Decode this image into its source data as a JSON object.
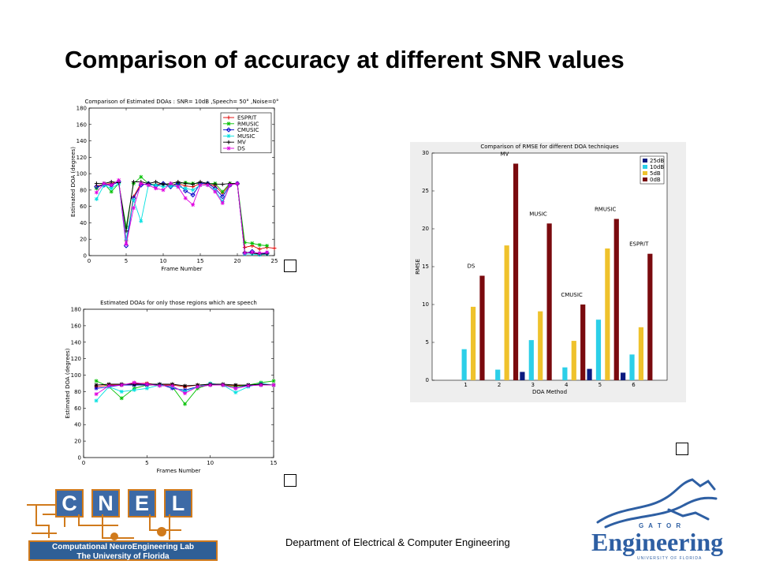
{
  "slide": {
    "title": "Comparison of accuracy at different SNR values",
    "footer": "Department of Electrical & Computer Engineering"
  },
  "logos": {
    "cnel": {
      "letters": [
        "C",
        "N",
        "E",
        "L"
      ],
      "line1": "Computational NeuroEngineering Lab",
      "line2": "The University of Florida"
    },
    "gator": {
      "big": "Engineering",
      "small": "G A T O R",
      "tagline": "UNIVERSITY OF FLORIDA"
    }
  },
  "chart_data": [
    {
      "type": "line",
      "title": "Comparison of Estimated DOAs : SNR= 10dB ,Speech= 50° ,Noise=0°",
      "xlabel": "Frame Number",
      "ylabel": "Estimated DOA (degrees)",
      "xlim": [
        0,
        25
      ],
      "ylim": [
        0,
        180
      ],
      "xticks": [
        0,
        5,
        10,
        15,
        20,
        25
      ],
      "yticks": [
        0,
        20,
        40,
        60,
        80,
        100,
        120,
        140,
        160,
        180
      ],
      "grid": false,
      "legend": "top-right",
      "x": [
        1,
        2,
        3,
        4,
        5,
        6,
        7,
        8,
        9,
        10,
        11,
        12,
        13,
        14,
        15,
        16,
        17,
        18,
        19,
        20,
        21,
        22,
        23,
        24,
        25
      ],
      "series": [
        {
          "name": "ESPRIT",
          "color": "#e00000",
          "marker": "+",
          "values": [
            85,
            87,
            88,
            90,
            18,
            72,
            88,
            86,
            87,
            88,
            86,
            88,
            85,
            84,
            88,
            87,
            85,
            76,
            87,
            87,
            10,
            12,
            8,
            10,
            9
          ]
        },
        {
          "name": "RMUSIC",
          "color": "#00c000",
          "marker": "*",
          "values": [
            82,
            88,
            78,
            88,
            35,
            88,
            96,
            88,
            86,
            87,
            86,
            88,
            89,
            88,
            88,
            88,
            88,
            78,
            88,
            88,
            16,
            15,
            13,
            12,
            null
          ]
        },
        {
          "name": "CMUSIC",
          "color": "#0000c8",
          "marker": "d",
          "values": [
            84,
            86,
            86,
            90,
            12,
            70,
            86,
            88,
            85,
            88,
            84,
            88,
            79,
            74,
            88,
            88,
            82,
            72,
            86,
            88,
            3,
            5,
            2,
            3,
            null
          ]
        },
        {
          "name": "MUSIC",
          "color": "#00e0e0",
          "marker": "*",
          "values": [
            69,
            86,
            82,
            88,
            20,
            68,
            42,
            86,
            86,
            84,
            85,
            84,
            82,
            80,
            86,
            86,
            80,
            66,
            86,
            88,
            2,
            2,
            1,
            2,
            null
          ]
        },
        {
          "name": "MV",
          "color": "#000000",
          "marker": "+",
          "values": [
            88,
            88,
            90,
            89,
            30,
            90,
            90,
            88,
            90,
            87,
            88,
            90,
            88,
            87,
            90,
            88,
            87,
            87,
            88,
            88,
            4,
            3,
            2,
            2,
            null
          ]
        },
        {
          "name": "DS",
          "color": "#e000e0",
          "marker": "*",
          "values": [
            77,
            88,
            86,
            92,
            14,
            58,
            88,
            86,
            82,
            80,
            88,
            84,
            70,
            62,
            86,
            86,
            78,
            64,
            86,
            88,
            3,
            4,
            3,
            4,
            null
          ]
        }
      ]
    },
    {
      "type": "line",
      "title": "Estimated DOAs for only those regions which are speech",
      "xlabel": "Frames Number",
      "ylabel": "Estimated DOA (degrees)",
      "xlim": [
        0,
        15
      ],
      "ylim": [
        0,
        180
      ],
      "xticks": [
        0,
        5,
        10,
        15
      ],
      "yticks": [
        0,
        20,
        40,
        60,
        80,
        100,
        120,
        140,
        160,
        180
      ],
      "grid": false,
      "x": [
        1,
        2,
        3,
        4,
        5,
        6,
        7,
        8,
        9,
        10,
        11,
        12,
        13,
        14,
        15
      ],
      "series": [
        {
          "color": "#e00000",
          "values": [
            86,
            88,
            88,
            90,
            90,
            88,
            88,
            86,
            88,
            88,
            88,
            87,
            88,
            88,
            88
          ]
        },
        {
          "color": "#00c000",
          "values": [
            93,
            86,
            72,
            84,
            88,
            88,
            86,
            65,
            84,
            89,
            88,
            86,
            88,
            91,
            93
          ]
        },
        {
          "color": "#0000c8",
          "values": [
            84,
            86,
            88,
            88,
            88,
            89,
            84,
            82,
            86,
            88,
            88,
            84,
            88,
            88,
            88
          ]
        },
        {
          "color": "#00e0e0",
          "values": [
            69,
            86,
            80,
            82,
            84,
            88,
            86,
            80,
            86,
            90,
            88,
            79,
            86,
            90,
            88
          ]
        },
        {
          "color": "#000000",
          "values": [
            88,
            89,
            89,
            89,
            89,
            89,
            89,
            87,
            88,
            89,
            89,
            88,
            88,
            89,
            88
          ]
        },
        {
          "color": "#e000e0",
          "values": [
            77,
            87,
            88,
            91,
            89,
            87,
            87,
            78,
            86,
            88,
            88,
            84,
            87,
            88,
            88
          ]
        }
      ]
    },
    {
      "type": "bar",
      "title": "Comparison of RMSE for different DOA techniques",
      "xlabel": "DOA Method",
      "ylabel": "RMSE",
      "categories": [
        "1",
        "2",
        "3",
        "4",
        "5",
        "6"
      ],
      "method_labels": [
        "DS",
        "MV",
        "MUSIC",
        "CMUSIC",
        "RMUSIC",
        "ESPRIT"
      ],
      "ylim": [
        0,
        30
      ],
      "yticks": [
        0,
        5,
        10,
        15,
        20,
        25,
        30
      ],
      "grid": false,
      "legend": "top-right",
      "series": [
        {
          "name": "25dB",
          "color": "#0b1a80",
          "values": [
            0,
            0,
            1.1,
            0,
            1.5,
            1.0
          ]
        },
        {
          "name": "10dB",
          "color": "#2ccfe8",
          "values": [
            4.1,
            1.4,
            5.3,
            1.7,
            8.0,
            3.4
          ]
        },
        {
          "name": "5dB",
          "color": "#efc22c",
          "values": [
            9.7,
            17.8,
            9.1,
            5.2,
            17.4,
            7.0
          ]
        },
        {
          "name": "0dB",
          "color": "#7a0a0e",
          "values": [
            13.8,
            28.6,
            20.7,
            10.0,
            21.3,
            16.7
          ]
        }
      ]
    }
  ]
}
